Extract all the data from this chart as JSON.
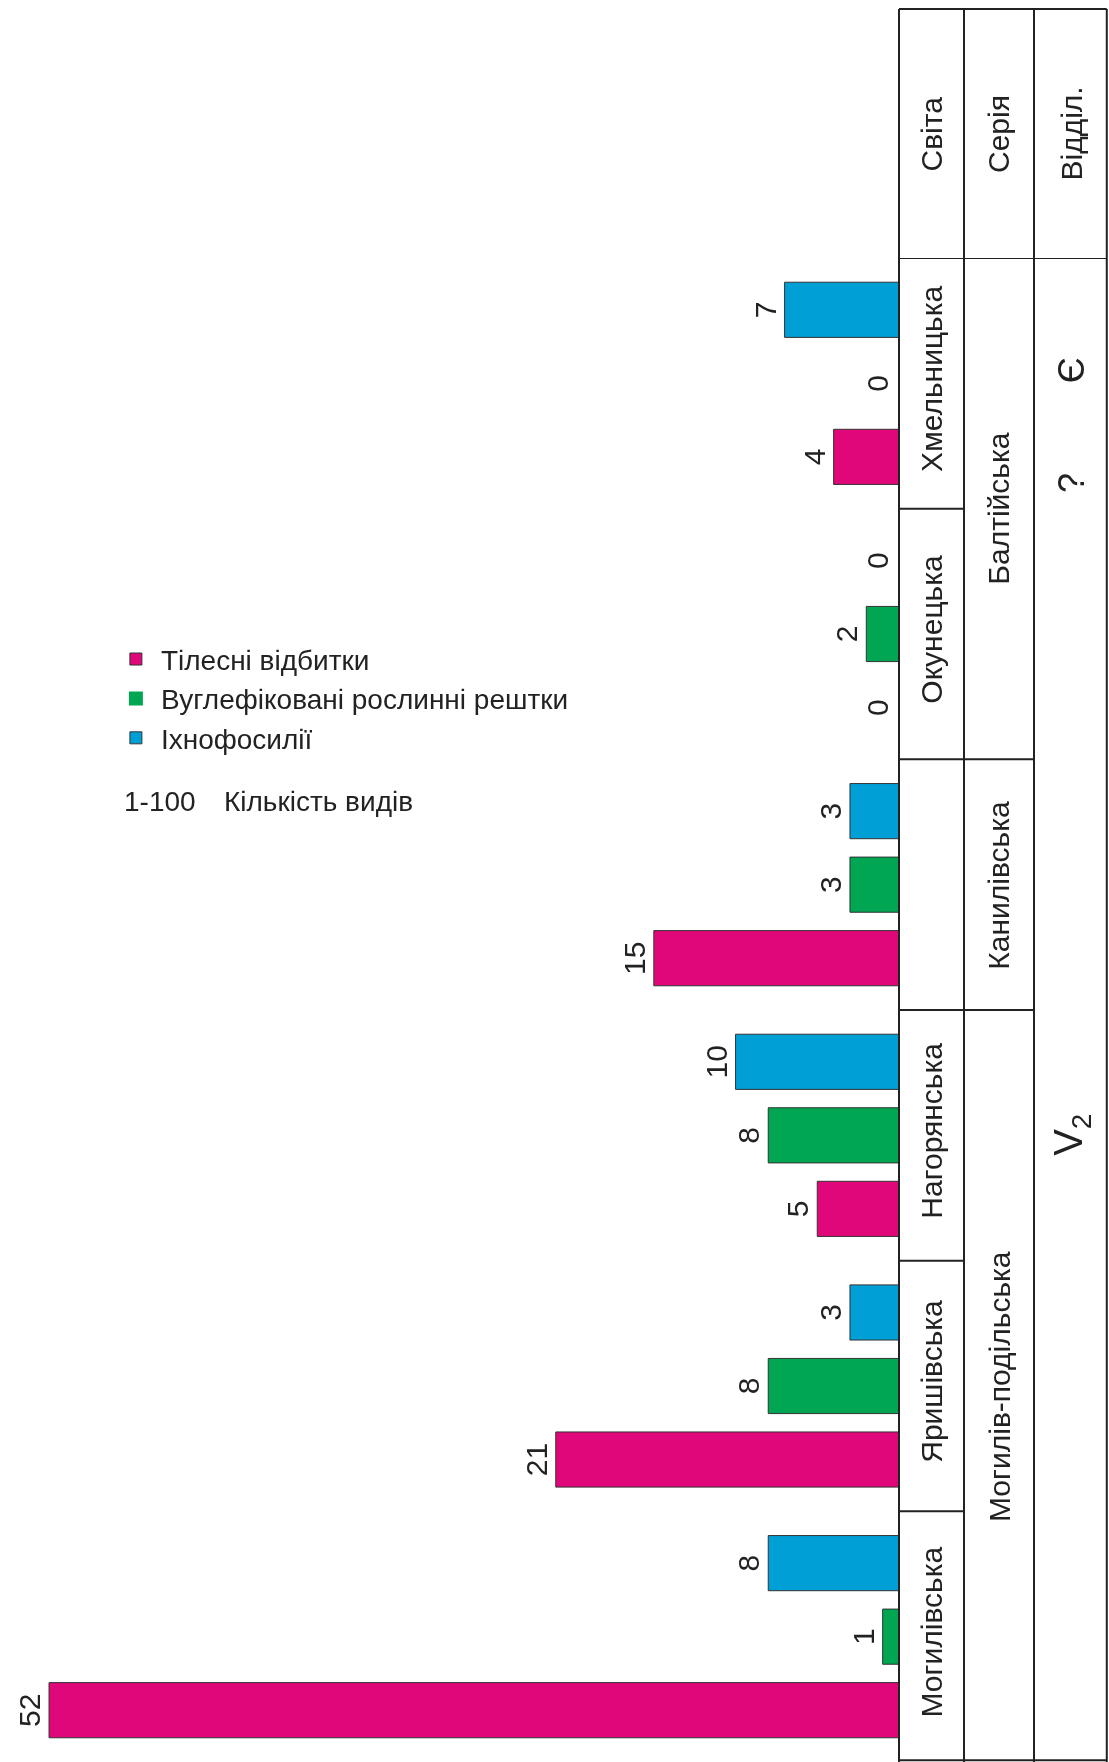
{
  "chart_data": {
    "type": "bar",
    "orientation": "horizontal",
    "categories": [
      "Хмельницька",
      "Окунецька",
      null,
      "Нагорянська",
      "Яришівська",
      "Могилівська"
    ],
    "series": [
      {
        "name": "Іхнофосилії",
        "color": "#00a0d6",
        "values": [
          7,
          0,
          3,
          10,
          3,
          8
        ]
      },
      {
        "name": "Вуглефіковані рослинні рештки",
        "color": "#00a652",
        "values": [
          0,
          2,
          3,
          8,
          8,
          1
        ]
      },
      {
        "name": "Тілесні відбитки",
        "color": "#e0077a",
        "values": [
          4,
          0,
          15,
          5,
          21,
          52
        ]
      }
    ],
    "xlim": [
      55,
      0
    ],
    "data_labels": true,
    "legend": "left",
    "annotations": [
      "Могилів-подільська",
      "Канилівська",
      "Балтійська",
      "V$_{2}$",
      "?",
      "Є",
      "Світа",
      "Серія",
      "Відділ.",
      "1-100",
      "Кількість видів"
    ]
  }
}
